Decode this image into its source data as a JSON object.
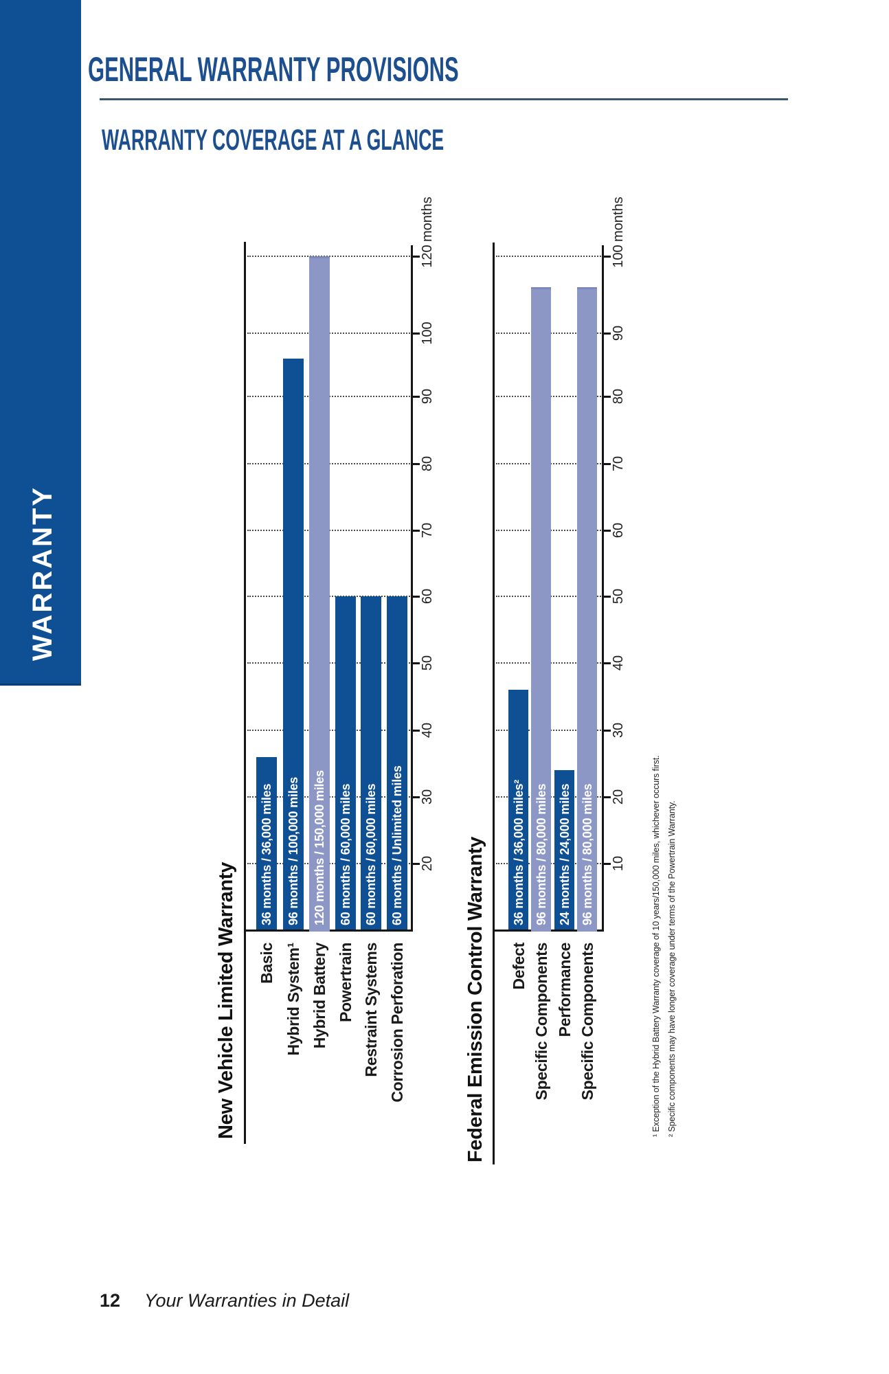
{
  "page": {
    "banner_label": "WARRANTY",
    "heading": "GENERAL WARRANTY PROVISIONS",
    "subheading": "WARRANTY COVERAGE AT A GLANCE",
    "footnotes": [
      "¹ Exception of the Hybrid Battery Warranty coverage of 10 years/150,000 miles, whichever occurs first.",
      "² Specific components may have longer coverage under terms of the Powertrain Warranty."
    ],
    "footer": {
      "page_number": "12",
      "text": "Your Warranties in Detail"
    },
    "colors": {
      "brand_blue": "#0f4f93",
      "light_bar_blue": "#8c97c6",
      "heading_blue": "#1d4f8f"
    }
  },
  "chart_data": [
    {
      "type": "bar",
      "title": "New Vehicle Limited Warranty",
      "orientation": "rotated_90_ccw",
      "grid": "dotted",
      "unit": "months",
      "axis_range": [
        20,
        120
      ],
      "axis_ticks": [
        20,
        30,
        40,
        50,
        60,
        70,
        80,
        90,
        100,
        120
      ],
      "axis_top_label": "120 months",
      "bars": [
        {
          "category": "Basic",
          "months": 36,
          "label": "36 months / 36,000 miles",
          "style": "dark"
        },
        {
          "category": "Hybrid System¹",
          "months": 96,
          "label": "96 months / 100,000 miles",
          "style": "dark"
        },
        {
          "category": "Hybrid Battery",
          "months": 120,
          "label": "120 months / 150,000 miles",
          "style": "light"
        },
        {
          "category": "Powertrain",
          "months": 60,
          "label": "60 months / 60,000 miles",
          "style": "dark"
        },
        {
          "category": "Restraint Systems",
          "months": 60,
          "label": "60 months / 60,000 miles",
          "style": "dark"
        },
        {
          "category": "Corrosion Perforation",
          "months": 60,
          "label": "60 months / Unlimited miles",
          "style": "dark"
        }
      ]
    },
    {
      "type": "bar",
      "title": "Federal Emission Control Warranty",
      "orientation": "rotated_90_ccw",
      "grid": "dotted",
      "unit": "months",
      "axis_range": [
        10,
        100
      ],
      "axis_ticks": [
        10,
        20,
        30,
        40,
        50,
        60,
        70,
        80,
        90,
        100
      ],
      "axis_top_label": "100 months",
      "bars": [
        {
          "category": "Defect",
          "months": 36,
          "label": "36 months / 36,000 miles²",
          "style": "dark"
        },
        {
          "category": "Specific Components",
          "months": 96,
          "label": "96 months / 80,000 miles",
          "style": "light"
        },
        {
          "category": "Performance",
          "months": 24,
          "label": "24 months / 24,000 miles",
          "style": "dark"
        },
        {
          "category": "Specific Components",
          "months": 96,
          "label": "96 months / 80,000 miles",
          "style": "light"
        }
      ]
    }
  ]
}
